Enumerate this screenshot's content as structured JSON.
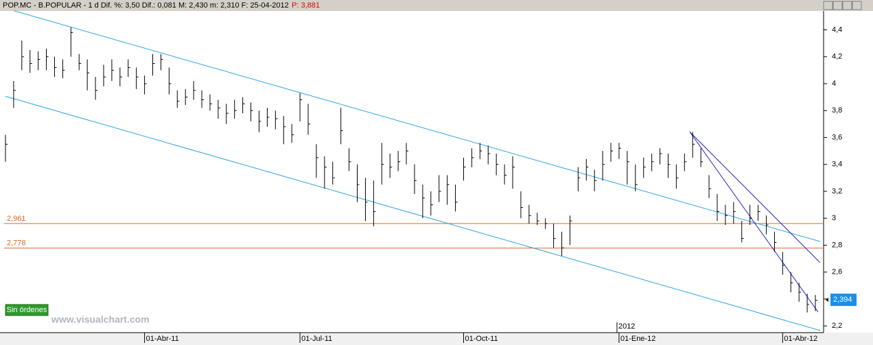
{
  "header": {
    "text": "POP.MC - B.POPULAR - 1 d  Dif. %: 3,50  Dif.: 0,081  M: 2,430  m: 2,310  F: 25-04-2012",
    "price": "P: 3,881"
  },
  "button": "Sin órdenes",
  "watermark": "www.visualchart.com",
  "chart_data": {
    "type": "ohlc",
    "categories": [
      null,
      null,
      null,
      null,
      null,
      null,
      null,
      null,
      null,
      null,
      null,
      null,
      null,
      null,
      null,
      null,
      null,
      "01-Abr-11",
      null,
      null,
      null,
      null,
      null,
      null,
      null,
      null,
      null,
      null,
      null,
      null,
      null,
      null,
      null,
      null,
      null,
      null,
      "01-Jul-11",
      null,
      null,
      null,
      null,
      null,
      null,
      null,
      null,
      null,
      null,
      null,
      null,
      null,
      null,
      null,
      null,
      null,
      null,
      null,
      "01-Oct-11",
      null,
      null,
      null,
      null,
      null,
      null,
      null,
      null,
      null,
      null,
      null,
      null,
      null,
      null,
      null,
      null,
      null,
      null,
      "01-Ene-12",
      null,
      null,
      null,
      null,
      null,
      null,
      null,
      null,
      null,
      null,
      null,
      null,
      null,
      null,
      null,
      null,
      null,
      null,
      null,
      "01-Abr-12",
      null,
      null,
      null,
      null
    ],
    "year_annotation": "2012",
    "color": "#000000",
    "high": [
      3.62,
      4.02,
      4.32,
      4.25,
      4.24,
      4.26,
      4.2,
      4.18,
      4.42,
      4.22,
      4.18,
      4.05,
      4.14,
      4.18,
      4.12,
      4.18,
      4.12,
      4.06,
      4.22,
      4.22,
      4.12,
      3.95,
      3.96,
      4.02,
      3.95,
      3.92,
      3.88,
      3.85,
      3.88,
      3.9,
      3.86,
      3.8,
      3.82,
      3.8,
      3.76,
      3.7,
      3.93,
      3.85,
      3.55,
      3.46,
      3.42,
      3.82,
      3.52,
      3.4,
      3.3,
      3.28,
      3.56,
      3.48,
      3.5,
      3.56,
      3.4,
      3.25,
      3.2,
      3.32,
      3.32,
      3.25,
      3.45,
      3.52,
      3.56,
      3.54,
      3.48,
      3.4,
      3.46,
      3.2,
      3.1,
      3.04,
      3.0,
      2.96,
      2.9,
      3.02,
      3.38,
      3.44,
      3.36,
      3.5,
      3.56,
      3.56,
      3.5,
      3.4,
      3.45,
      3.48,
      3.52,
      3.48,
      3.4,
      3.48,
      3.64,
      3.52,
      3.32,
      3.18,
      3.1,
      3.12,
      2.98,
      3.1,
      3.1,
      3.02,
      2.9,
      2.75,
      2.6,
      2.52,
      2.44,
      2.43
    ],
    "low": [
      3.42,
      3.82,
      4.1,
      4.08,
      4.1,
      4.1,
      4.05,
      4.04,
      4.2,
      4.1,
      3.95,
      3.88,
      3.98,
      4.02,
      3.98,
      4.05,
      3.96,
      3.92,
      4.06,
      4.1,
      3.92,
      3.82,
      3.84,
      3.88,
      3.82,
      3.8,
      3.74,
      3.7,
      3.74,
      3.78,
      3.72,
      3.64,
      3.68,
      3.66,
      3.55,
      3.56,
      3.72,
      3.62,
      3.3,
      3.22,
      3.25,
      3.55,
      3.35,
      3.12,
      2.98,
      2.94,
      3.25,
      3.3,
      3.35,
      3.4,
      3.18,
      3.0,
      3.02,
      3.12,
      3.1,
      3.05,
      3.28,
      3.38,
      3.44,
      3.4,
      3.32,
      3.25,
      3.22,
      3.0,
      2.96,
      2.95,
      2.92,
      2.78,
      2.72,
      2.8,
      3.2,
      3.28,
      3.2,
      3.28,
      3.42,
      3.44,
      3.25,
      3.2,
      3.3,
      3.35,
      3.4,
      3.3,
      3.22,
      3.35,
      3.45,
      3.38,
      3.15,
      2.98,
      2.95,
      2.96,
      2.82,
      2.95,
      2.98,
      2.88,
      2.75,
      2.58,
      2.45,
      2.38,
      2.3,
      2.31
    ],
    "close": [
      3.55,
      3.95,
      4.2,
      4.15,
      4.18,
      4.2,
      4.12,
      4.1,
      4.38,
      4.15,
      4.08,
      3.95,
      4.05,
      4.1,
      4.05,
      4.12,
      4.05,
      4.0,
      4.15,
      4.18,
      4.0,
      3.87,
      3.9,
      3.95,
      3.88,
      3.85,
      3.82,
      3.78,
      3.8,
      3.85,
      3.8,
      3.72,
      3.75,
      3.74,
      3.68,
      3.62,
      3.88,
      3.7,
      3.45,
      3.38,
      3.3,
      3.65,
      3.42,
      3.25,
      3.12,
      3.05,
      3.4,
      3.38,
      3.42,
      3.5,
      3.28,
      3.15,
      3.1,
      3.2,
      3.25,
      3.12,
      3.38,
      3.45,
      3.5,
      3.48,
      3.4,
      3.32,
      3.38,
      3.08,
      3.02,
      2.98,
      2.96,
      2.85,
      2.78,
      2.98,
      3.3,
      3.38,
      3.28,
      3.4,
      3.5,
      3.52,
      3.42,
      3.25,
      3.38,
      3.42,
      3.48,
      3.4,
      3.3,
      3.42,
      3.55,
      3.42,
      3.22,
      3.05,
      3.02,
      3.05,
      2.85,
      3.0,
      3.05,
      2.95,
      2.82,
      2.65,
      2.52,
      2.45,
      2.36,
      2.39
    ],
    "ylim": [
      2.15,
      4.54
    ],
    "yticks": [
      {
        "value": 2.2,
        "label": "2,2"
      },
      {
        "value": 2.4,
        "label": "2,4"
      },
      {
        "value": 2.6,
        "label": "2,6"
      },
      {
        "value": 2.8,
        "label": "2,8"
      },
      3,
      {
        "value": 3.2,
        "label": "3,2"
      },
      {
        "value": 3.4,
        "label": "3,4"
      },
      {
        "value": 3.6,
        "label": "3,6"
      },
      {
        "value": 3.8,
        "label": "3,8"
      },
      4,
      {
        "value": 4.2,
        "label": "4,2"
      },
      {
        "value": 4.4,
        "label": "4,4"
      }
    ],
    "levels": [
      {
        "value": 2.961,
        "label": "2,961",
        "color": "#e0642a"
      },
      {
        "value": 2.778,
        "label": "2,778",
        "color": "#e0642a"
      }
    ],
    "last_price": {
      "value": 2.394,
      "label": "2,394",
      "color": "#1e8fe8"
    },
    "trendlines": [
      {
        "color": "#29a3e6",
        "y": [
          4.542,
          2.827
        ]
      },
      {
        "color": "#29a3e6",
        "y": [
          3.906,
          2.166
        ]
      },
      {
        "color": "#2424c8",
        "y": [
          3.642,
          2.67
        ]
      },
      {
        "color": "#2424c8",
        "y": [
          3.642,
          2.303
        ]
      }
    ]
  }
}
